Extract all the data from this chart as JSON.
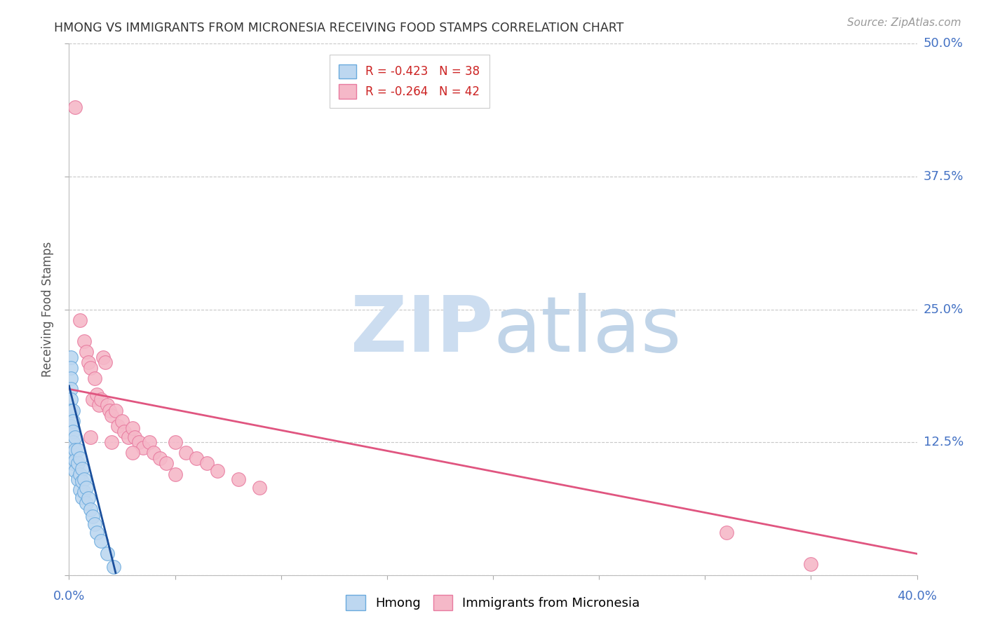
{
  "title": "HMONG VS IMMIGRANTS FROM MICRONESIA RECEIVING FOOD STAMPS CORRELATION CHART",
  "source": "Source: ZipAtlas.com",
  "ylabel": "Receiving Food Stamps",
  "xlim": [
    0.0,
    0.4
  ],
  "ylim": [
    0.0,
    0.5
  ],
  "yticks": [
    0.0,
    0.125,
    0.25,
    0.375,
    0.5
  ],
  "xticks": [
    0.0,
    0.05,
    0.1,
    0.15,
    0.2,
    0.25,
    0.3,
    0.35,
    0.4
  ],
  "hmong_color": "#bdd7f0",
  "hmong_edge_color": "#6aaadd",
  "micronesia_color": "#f5b8c8",
  "micronesia_edge_color": "#e87a9f",
  "hmong_line_color": "#1a4f9c",
  "micronesia_line_color": "#e05580",
  "axis_label_color": "#4472c4",
  "background_color": "#ffffff",
  "grid_color": "#c8c8c8",
  "legend_text_color": "#cc2222",
  "legend_n_color": "#3366cc",
  "watermark_zip_color": "#ccddf0",
  "watermark_atlas_color": "#c0d4e8",
  "hmong_r": -0.423,
  "hmong_n": 38,
  "micronesia_r": -0.264,
  "micronesia_n": 42,
  "hmong_points_x": [
    0.001,
    0.001,
    0.001,
    0.001,
    0.001,
    0.001,
    0.001,
    0.002,
    0.002,
    0.002,
    0.002,
    0.002,
    0.002,
    0.003,
    0.003,
    0.003,
    0.003,
    0.004,
    0.004,
    0.004,
    0.005,
    0.005,
    0.005,
    0.006,
    0.006,
    0.006,
    0.007,
    0.007,
    0.008,
    0.008,
    0.009,
    0.01,
    0.011,
    0.012,
    0.013,
    0.015,
    0.018,
    0.021
  ],
  "hmong_points_y": [
    0.205,
    0.195,
    0.185,
    0.175,
    0.165,
    0.155,
    0.14,
    0.155,
    0.145,
    0.135,
    0.125,
    0.115,
    0.105,
    0.13,
    0.118,
    0.108,
    0.098,
    0.118,
    0.105,
    0.09,
    0.11,
    0.095,
    0.08,
    0.1,
    0.088,
    0.073,
    0.09,
    0.078,
    0.082,
    0.068,
    0.072,
    0.062,
    0.055,
    0.048,
    0.04,
    0.032,
    0.02,
    0.008
  ],
  "micronesia_points_x": [
    0.003,
    0.005,
    0.007,
    0.008,
    0.009,
    0.01,
    0.011,
    0.012,
    0.013,
    0.014,
    0.015,
    0.016,
    0.017,
    0.018,
    0.019,
    0.02,
    0.022,
    0.023,
    0.025,
    0.026,
    0.028,
    0.03,
    0.031,
    0.033,
    0.035,
    0.038,
    0.04,
    0.043,
    0.046,
    0.05,
    0.055,
    0.06,
    0.065,
    0.07,
    0.08,
    0.09,
    0.01,
    0.02,
    0.03,
    0.05,
    0.31,
    0.35
  ],
  "micronesia_points_y": [
    0.44,
    0.24,
    0.22,
    0.21,
    0.2,
    0.195,
    0.165,
    0.185,
    0.17,
    0.16,
    0.165,
    0.205,
    0.2,
    0.16,
    0.155,
    0.15,
    0.155,
    0.14,
    0.145,
    0.135,
    0.13,
    0.138,
    0.13,
    0.125,
    0.12,
    0.125,
    0.115,
    0.11,
    0.105,
    0.125,
    0.115,
    0.11,
    0.105,
    0.098,
    0.09,
    0.082,
    0.13,
    0.125,
    0.115,
    0.095,
    0.04,
    0.01
  ],
  "mic_trend_x0": 0.0,
  "mic_trend_y0": 0.175,
  "mic_trend_x1": 0.4,
  "mic_trend_y1": 0.02,
  "hmong_trend_x0": 0.0,
  "hmong_trend_y0": 0.178,
  "hmong_trend_x1": 0.022,
  "hmong_trend_y1": 0.002
}
